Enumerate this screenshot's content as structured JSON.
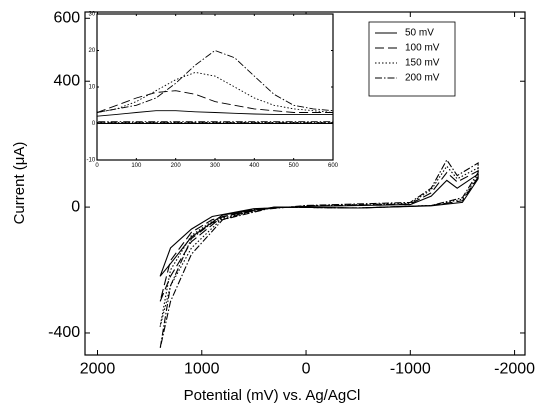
{
  "chart_data": [
    {
      "type": "line",
      "xlabel": "Potential (mV) vs. Ag/AgCl",
      "ylabel": "Current (μA)",
      "xlim": [
        2120,
        -2100
      ],
      "xticks": [
        2000,
        1000,
        0,
        -1000,
        -2000
      ],
      "ylim": [
        -470,
        620
      ],
      "yticks": [
        -400,
        0,
        400,
        600
      ],
      "legend": "upper right",
      "series": [
        {
          "name": "50 mV",
          "color": "#000000",
          "dash": "solid",
          "x": [
            300,
            -500,
            -1200,
            -1500,
            -1650,
            -1650,
            -1450,
            -1350,
            -1200,
            -1000,
            0,
            500,
            900,
            1100,
            1300,
            1400,
            1300,
            1100,
            800,
            300
          ],
          "values": [
            0,
            -3,
            4,
            15,
            90,
            105,
            60,
            85,
            35,
            8,
            2,
            -5,
            -30,
            -70,
            -130,
            -220,
            -180,
            -95,
            -25,
            0
          ]
        },
        {
          "name": "100 mV",
          "color": "#000000",
          "dash": "dashed",
          "x": [
            300,
            -500,
            -1200,
            -1500,
            -1650,
            -1650,
            -1450,
            -1350,
            -1200,
            -1000,
            0,
            500,
            900,
            1100,
            1300,
            1400,
            1300,
            1100,
            800,
            300
          ],
          "values": [
            0,
            -3,
            5,
            20,
            95,
            115,
            80,
            110,
            45,
            10,
            3,
            -6,
            -40,
            -80,
            -170,
            -300,
            -220,
            -110,
            -30,
            0
          ]
        },
        {
          "name": "150 mV",
          "color": "#000000",
          "dash": "dotted",
          "x": [
            300,
            -500,
            -1200,
            -1500,
            -1650,
            -1650,
            -1450,
            -1350,
            -1200,
            -1000,
            0,
            500,
            900,
            1100,
            1300,
            1400,
            1300,
            1100,
            800,
            300
          ],
          "values": [
            0,
            -3,
            5,
            25,
            100,
            125,
            90,
            130,
            55,
            12,
            4,
            -8,
            -45,
            -90,
            -200,
            -380,
            -250,
            -130,
            -35,
            0
          ]
        },
        {
          "name": "200 mV",
          "color": "#000000",
          "dash": "dashdot",
          "x": [
            300,
            -500,
            -1200,
            -1500,
            -1650,
            -1650,
            -1450,
            -1350,
            -1200,
            -1000,
            0,
            500,
            900,
            1100,
            1300,
            1400,
            1300,
            1100,
            800,
            300
          ],
          "values": [
            0,
            -3,
            5,
            30,
            110,
            140,
            100,
            150,
            60,
            15,
            5,
            -10,
            -50,
            -100,
            -250,
            -450,
            -300,
            -150,
            -40,
            0
          ]
        }
      ]
    },
    {
      "type": "line",
      "xlim": [
        0,
        600
      ],
      "xticks": [
        0,
        100,
        200,
        300,
        400,
        500,
        600
      ],
      "ylim": [
        -10,
        30
      ],
      "yticks": [
        -10,
        0,
        10,
        20,
        30
      ],
      "series": [
        {
          "color": "#000000",
          "dash": "solid",
          "x": [
            0,
            50,
            100,
            150,
            200,
            250,
            300,
            350,
            400,
            450,
            500,
            550,
            600,
            600,
            500,
            300,
            100,
            0
          ],
          "values": [
            2,
            2.5,
            3,
            3.5,
            3.5,
            3.2,
            3,
            2.8,
            2.6,
            2.5,
            2.5,
            2.5,
            2.5,
            0,
            0,
            0,
            0,
            0
          ]
        },
        {
          "color": "#000000",
          "dash": "dashed",
          "x": [
            0,
            50,
            100,
            150,
            200,
            250,
            300,
            350,
            400,
            450,
            500,
            550,
            600,
            600,
            500,
            300,
            100,
            0
          ],
          "values": [
            3,
            5,
            7,
            8.5,
            9,
            8,
            6,
            5,
            4,
            3.5,
            3,
            3,
            3,
            0.2,
            0.2,
            0.2,
            0.2,
            0.2
          ]
        },
        {
          "color": "#000000",
          "dash": "dotted",
          "x": [
            0,
            50,
            100,
            150,
            200,
            250,
            300,
            350,
            400,
            450,
            500,
            550,
            600,
            600,
            500,
            300,
            100,
            0
          ],
          "values": [
            3,
            4,
            6,
            9,
            12,
            14,
            13,
            10,
            7,
            5,
            4,
            3.5,
            3,
            0.3,
            0.3,
            0.3,
            0.3,
            0.3
          ]
        },
        {
          "color": "#000000",
          "dash": "dashdot",
          "x": [
            0,
            50,
            100,
            150,
            200,
            250,
            300,
            350,
            400,
            450,
            500,
            550,
            600,
            600,
            500,
            300,
            100,
            0
          ],
          "values": [
            3,
            4,
            5,
            7,
            11,
            16,
            20,
            18,
            13,
            8,
            5,
            4,
            3.5,
            0.5,
            0.5,
            0.5,
            0.5,
            0.5
          ]
        }
      ]
    }
  ]
}
